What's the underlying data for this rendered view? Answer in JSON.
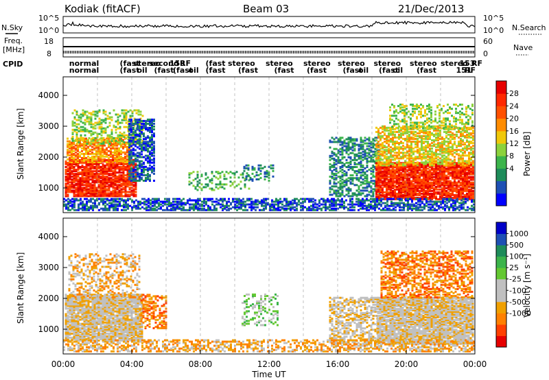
{
  "header": {
    "station": "Kodiak (fitACF)",
    "beam": "Beam 03",
    "date": "21/Dec/2013"
  },
  "panel_labels": {
    "nsky": "N.Sky",
    "nsearch": "N.Search",
    "freq_line1": "Freq.",
    "freq_line2": "[MHz]",
    "nave": "Nave",
    "cpid": "CPID"
  },
  "small_axes": {
    "noise_ticks_left": [
      "10^5",
      "10^0"
    ],
    "noise_ticks_right": [
      "10^5",
      "10^0"
    ],
    "freq_ticks_left": [
      "18",
      "8"
    ],
    "nave_ticks_right": [
      "60",
      "0"
    ]
  },
  "cpid_texts": [
    {
      "text": "normal",
      "x": 0.35,
      "row": 0
    },
    {
      "text": "normal",
      "x": 0.35,
      "row": 1
    },
    {
      "text": "(fast",
      "x": 3.3,
      "row": 0
    },
    {
      "text": "(fast",
      "x": 3.3,
      "row": 1
    },
    {
      "text": "stereo",
      "x": 4.1,
      "row": 0
    },
    {
      "text": "oil",
      "x": 4.3,
      "row": 1
    },
    {
      "text": "second",
      "x": 5.0,
      "row": 0
    },
    {
      "text": "(fast",
      "x": 5.3,
      "row": 1
    },
    {
      "text": "153",
      "x": 6.2,
      "row": 0
    },
    {
      "text": "RF",
      "x": 6.8,
      "row": 0
    },
    {
      "text": "(fast",
      "x": 6.4,
      "row": 1
    },
    {
      "text": "oil",
      "x": 7.3,
      "row": 1
    },
    {
      "text": "(fast",
      "x": 8.3,
      "row": 0
    },
    {
      "text": "(fast",
      "x": 8.3,
      "row": 1
    },
    {
      "text": "stereo",
      "x": 9.6,
      "row": 0
    },
    {
      "text": "(fast",
      "x": 10.2,
      "row": 1
    },
    {
      "text": "stereo",
      "x": 11.8,
      "row": 0
    },
    {
      "text": "(fast",
      "x": 12.3,
      "row": 1
    },
    {
      "text": "stereo",
      "x": 14.0,
      "row": 0
    },
    {
      "text": "(fast",
      "x": 14.2,
      "row": 1
    },
    {
      "text": "stereo",
      "x": 16.0,
      "row": 0
    },
    {
      "text": "(fast",
      "x": 16.3,
      "row": 1
    },
    {
      "text": "oil",
      "x": 17.2,
      "row": 1
    },
    {
      "text": "stereo",
      "x": 18.1,
      "row": 0
    },
    {
      "text": "(fast",
      "x": 18.4,
      "row": 1
    },
    {
      "text": "oil",
      "x": 19.2,
      "row": 1
    },
    {
      "text": "stereo",
      "x": 20.2,
      "row": 0
    },
    {
      "text": "(fast",
      "x": 20.6,
      "row": 1
    },
    {
      "text": "stereo",
      "x": 22.0,
      "row": 0
    },
    {
      "text": "153",
      "x": 23.1,
      "row": 0
    },
    {
      "text": "RF",
      "x": 23.8,
      "row": 0
    },
    {
      "text": "151",
      "x": 22.9,
      "row": 1
    },
    {
      "text": "RF",
      "x": 23.4,
      "row": 1
    }
  ],
  "chart_data": [
    {
      "type": "heatmap",
      "name_panel": "power",
      "xlabel": "",
      "ylabel": "Slant Range [km]",
      "xlim": [
        0,
        24
      ],
      "ylim": [
        200,
        4600
      ],
      "yticks": [
        1000,
        2000,
        3000,
        4000
      ],
      "colorbar": {
        "label": "Power [dB]",
        "ticks": [
          "28",
          "24",
          "20",
          "16",
          "12",
          "8",
          "4"
        ],
        "colors": [
          "#0000ff",
          "#1e50b4",
          "#1e8c5a",
          "#3cb44b",
          "#8cd23c",
          "#f0c80a",
          "#ff8c00",
          "#ff5000",
          "#ff2800",
          "#e60000"
        ]
      },
      "regions": [
        {
          "t0": 0.1,
          "t1": 4.3,
          "r0": 700,
          "r1": 1900,
          "level": 8,
          "density": 0.85
        },
        {
          "t0": 0.2,
          "t1": 4.0,
          "r0": 1800,
          "r1": 2600,
          "level": 6,
          "density": 0.7
        },
        {
          "t0": 0.5,
          "t1": 4.6,
          "r0": 2400,
          "r1": 3500,
          "level": 4,
          "density": 0.4
        },
        {
          "t0": 3.8,
          "t1": 5.3,
          "r0": 1200,
          "r1": 3200,
          "level": 1,
          "density": 0.6
        },
        {
          "t0": 7.3,
          "t1": 10.8,
          "r0": 900,
          "r1": 1500,
          "level": 3,
          "density": 0.3
        },
        {
          "t0": 10.5,
          "t1": 12.2,
          "r0": 1200,
          "r1": 1700,
          "level": 2,
          "density": 0.3
        },
        {
          "t0": 15.5,
          "t1": 18.5,
          "r0": 700,
          "r1": 2600,
          "level": 2,
          "density": 0.5
        },
        {
          "t0": 18.2,
          "t1": 23.9,
          "r0": 600,
          "r1": 1800,
          "level": 8,
          "density": 0.9
        },
        {
          "t0": 18.2,
          "t1": 23.9,
          "r0": 1700,
          "r1": 3000,
          "level": 5,
          "density": 0.6
        },
        {
          "t0": 19.0,
          "t1": 23.9,
          "r0": 2900,
          "r1": 3700,
          "level": 4,
          "density": 0.35
        },
        {
          "t0": 0.0,
          "t1": 24.0,
          "r0": 250,
          "r1": 650,
          "level": 1,
          "density": 0.6
        }
      ]
    },
    {
      "type": "heatmap",
      "name_panel": "velocity",
      "xlabel": "Time UT",
      "ylabel": "Slant Range [km]",
      "xlim": [
        0,
        24
      ],
      "ylim": [
        200,
        4600
      ],
      "yticks": [
        1000,
        2000,
        3000,
        4000
      ],
      "xticks": [
        "00:00",
        "04:00",
        "08:00",
        "12:00",
        "16:00",
        "20:00",
        "00:00"
      ],
      "colorbar": {
        "label": "Velocity [m s⁻¹]",
        "ticks": [
          "1000",
          "500",
          "100",
          "25",
          "-25",
          "-100",
          "-500",
          "-1000"
        ],
        "colors": [
          "#e60000",
          "#ff4000",
          "#ff8000",
          "#f0a000",
          "#c0c0c0",
          "#c0c0c0",
          "#64c832",
          "#3cb44b",
          "#1e8c5a",
          "#1e50b4",
          "#0000c8"
        ]
      },
      "regions": [
        {
          "t0": 0.1,
          "t1": 4.6,
          "r0": 600,
          "r1": 2100,
          "level": 4,
          "density": 0.9
        },
        {
          "t0": 0.3,
          "t1": 4.5,
          "r0": 2000,
          "r1": 3400,
          "level": 3,
          "density": 0.35
        },
        {
          "t0": 4.5,
          "t1": 6.0,
          "r0": 1000,
          "r1": 2100,
          "level": 2,
          "density": 0.4
        },
        {
          "t0": 10.4,
          "t1": 12.5,
          "r0": 1100,
          "r1": 2100,
          "level": 6,
          "density": 0.3
        },
        {
          "t0": 15.5,
          "t1": 18.3,
          "r0": 500,
          "r1": 2000,
          "level": 4,
          "density": 0.5
        },
        {
          "t0": 18.3,
          "t1": 23.9,
          "r0": 500,
          "r1": 2000,
          "level": 4,
          "density": 0.9
        },
        {
          "t0": 18.5,
          "t1": 23.8,
          "r0": 2000,
          "r1": 3500,
          "level": 2,
          "density": 0.5
        },
        {
          "t0": 0.0,
          "t1": 24.0,
          "r0": 250,
          "r1": 650,
          "level": 3,
          "density": 0.5
        }
      ]
    }
  ]
}
